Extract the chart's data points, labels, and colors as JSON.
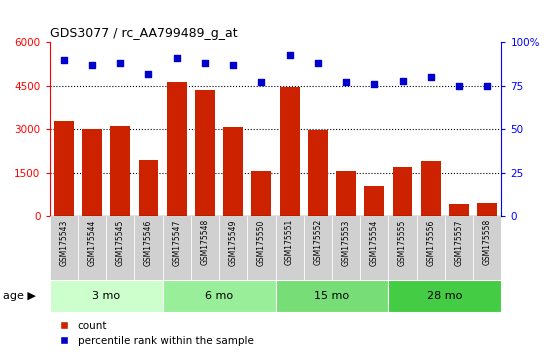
{
  "title": "GDS3077 / rc_AA799489_g_at",
  "samples": [
    "GSM175543",
    "GSM175544",
    "GSM175545",
    "GSM175546",
    "GSM175547",
    "GSM175548",
    "GSM175549",
    "GSM175550",
    "GSM175551",
    "GSM175552",
    "GSM175553",
    "GSM175554",
    "GSM175555",
    "GSM175556",
    "GSM175557",
    "GSM175558"
  ],
  "counts": [
    3300,
    3000,
    3100,
    1950,
    4650,
    4350,
    3080,
    1540,
    4450,
    2980,
    1540,
    1050,
    1700,
    1900,
    420,
    450
  ],
  "percentile": [
    90,
    87,
    88,
    82,
    91,
    88,
    87,
    77,
    93,
    88,
    77,
    76,
    78,
    80,
    75,
    75
  ],
  "age_groups": [
    {
      "label": "3 mo",
      "start": 0,
      "end": 4,
      "color": "#ccffcc"
    },
    {
      "label": "6 mo",
      "start": 4,
      "end": 8,
      "color": "#99ee99"
    },
    {
      "label": "15 mo",
      "start": 8,
      "end": 12,
      "color": "#77dd77"
    },
    {
      "label": "28 mo",
      "start": 12,
      "end": 16,
      "color": "#44cc44"
    }
  ],
  "bar_color": "#cc2200",
  "dot_color": "#0000cc",
  "bar_ylim": [
    0,
    6000
  ],
  "pct_ylim": [
    0,
    100
  ],
  "bar_yticks": [
    0,
    1500,
    3000,
    4500,
    6000
  ],
  "pct_yticks": [
    0,
    25,
    50,
    75,
    100
  ],
  "grid_values": [
    1500,
    3000,
    4500
  ],
  "plot_bg_color": "#ffffff",
  "tick_bg_color": "#d0d0d0",
  "legend_count_label": "count",
  "legend_pct_label": "percentile rank within the sample",
  "age_label": "age"
}
